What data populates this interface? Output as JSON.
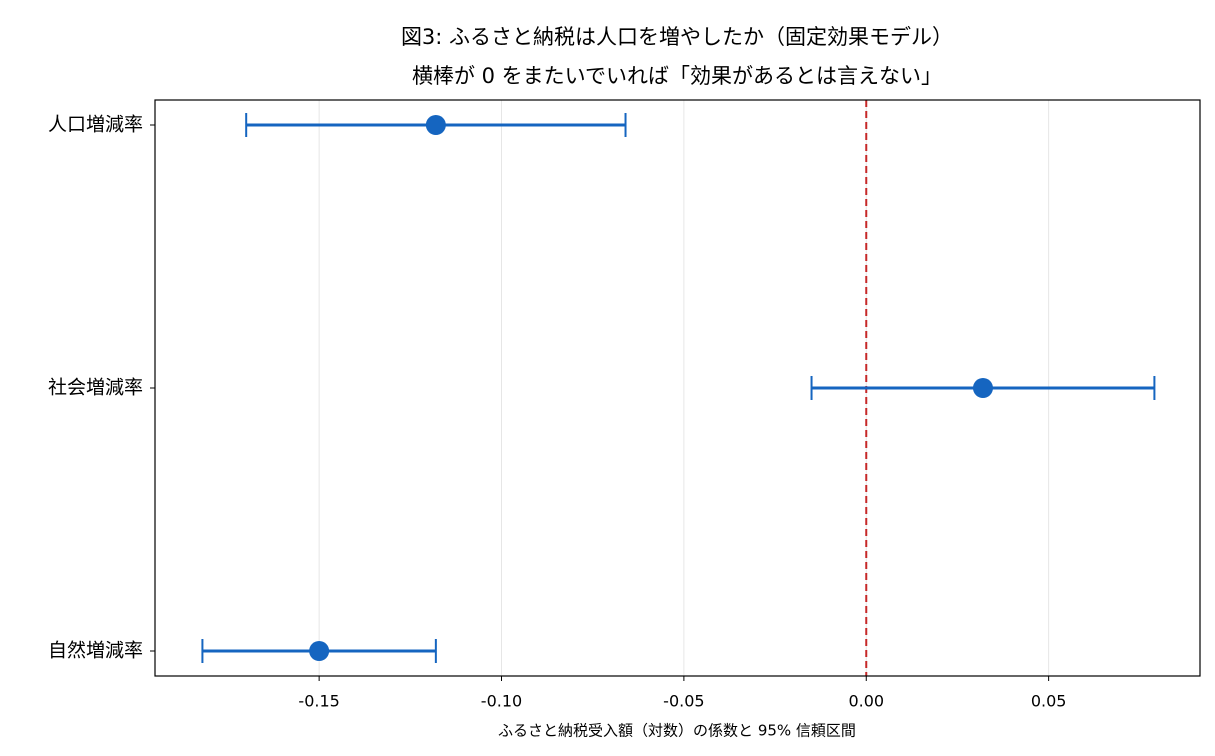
{
  "chart_data": {
    "type": "errorbar",
    "title": "図3: ふるさと納税は人口を増やしたか（固定効果モデル）",
    "subtitle": "横棒が 0 をまたいでいれば「効果があるとは言えない」",
    "x_label": "ふるさと納税受入額（対数）の係数と 95% 信頼区間",
    "categories": [
      "人口増減率",
      "社会増減率",
      "自然増減率"
    ],
    "values": [
      -0.118,
      0.032,
      -0.15
    ],
    "errors": [
      0.052,
      0.047,
      0.032
    ],
    "color": "#1565c0",
    "reference_line": 0,
    "reference_color": "#c62828",
    "xlim": [
      -0.195,
      0.0915
    ],
    "xticks": [
      -0.15,
      {
        "value": -0.1,
        "label": "-0.10"
      },
      -0.05,
      {
        "value": 0,
        "label": "0.00"
      },
      0.05
    ],
    "grid": true
  }
}
